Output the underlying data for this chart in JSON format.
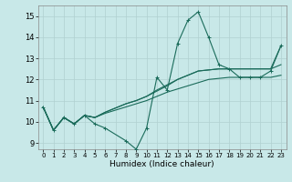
{
  "title": "",
  "xlabel": "Humidex (Indice chaleur)",
  "xlim": [
    -0.5,
    23.5
  ],
  "ylim": [
    8.7,
    15.5
  ],
  "yticks": [
    9,
    10,
    11,
    12,
    13,
    14,
    15
  ],
  "xticks": [
    0,
    1,
    2,
    3,
    4,
    5,
    6,
    7,
    8,
    9,
    10,
    11,
    12,
    13,
    14,
    15,
    16,
    17,
    18,
    19,
    20,
    21,
    22,
    23
  ],
  "bg_color": "#c8e8e8",
  "grid_color": "#b0d0d0",
  "line_color": "#1a6b5a",
  "series": [
    {
      "x": [
        0,
        1,
        2,
        3,
        4,
        5,
        6,
        8,
        9,
        10,
        11,
        12,
        13,
        14,
        15,
        16,
        17,
        18,
        19,
        20,
        21,
        22,
        23
      ],
      "y": [
        10.7,
        9.6,
        10.2,
        9.9,
        10.3,
        9.9,
        9.7,
        9.1,
        8.7,
        9.7,
        12.1,
        11.5,
        13.7,
        14.8,
        15.2,
        14.0,
        12.7,
        12.5,
        12.1,
        12.1,
        12.1,
        12.4,
        13.6
      ],
      "markers": true
    },
    {
      "x": [
        0,
        1,
        2,
        3,
        4,
        5,
        6,
        7,
        8,
        9,
        10,
        11,
        12,
        13,
        14,
        15,
        16,
        17,
        18,
        19,
        20,
        21,
        22,
        23
      ],
      "y": [
        10.7,
        9.6,
        10.2,
        9.9,
        10.3,
        10.2,
        10.4,
        10.55,
        10.7,
        10.85,
        11.0,
        11.2,
        11.4,
        11.55,
        11.7,
        11.85,
        12.0,
        12.05,
        12.1,
        12.1,
        12.1,
        12.1,
        12.1,
        12.2
      ],
      "markers": false
    },
    {
      "x": [
        0,
        1,
        2,
        3,
        4,
        5,
        6,
        7,
        8,
        9,
        10,
        11,
        12,
        13,
        14,
        15,
        16,
        17,
        18,
        19,
        20,
        21,
        22,
        23
      ],
      "y": [
        10.7,
        9.6,
        10.2,
        9.9,
        10.3,
        10.2,
        10.45,
        10.65,
        10.85,
        11.0,
        11.2,
        11.5,
        11.75,
        12.0,
        12.2,
        12.4,
        12.45,
        12.5,
        12.5,
        12.5,
        12.5,
        12.5,
        12.5,
        12.7
      ],
      "markers": false
    },
    {
      "x": [
        0,
        1,
        2,
        3,
        4,
        5,
        6,
        7,
        8,
        9,
        10,
        11,
        12,
        13,
        14,
        15,
        16,
        17,
        18,
        19,
        20,
        21,
        22,
        23
      ],
      "y": [
        10.7,
        9.6,
        10.2,
        9.9,
        10.3,
        10.2,
        10.45,
        10.65,
        10.85,
        11.0,
        11.2,
        11.45,
        11.7,
        12.0,
        12.2,
        12.4,
        12.45,
        12.5,
        12.5,
        12.5,
        12.5,
        12.5,
        12.5,
        13.6
      ],
      "markers": false
    }
  ]
}
